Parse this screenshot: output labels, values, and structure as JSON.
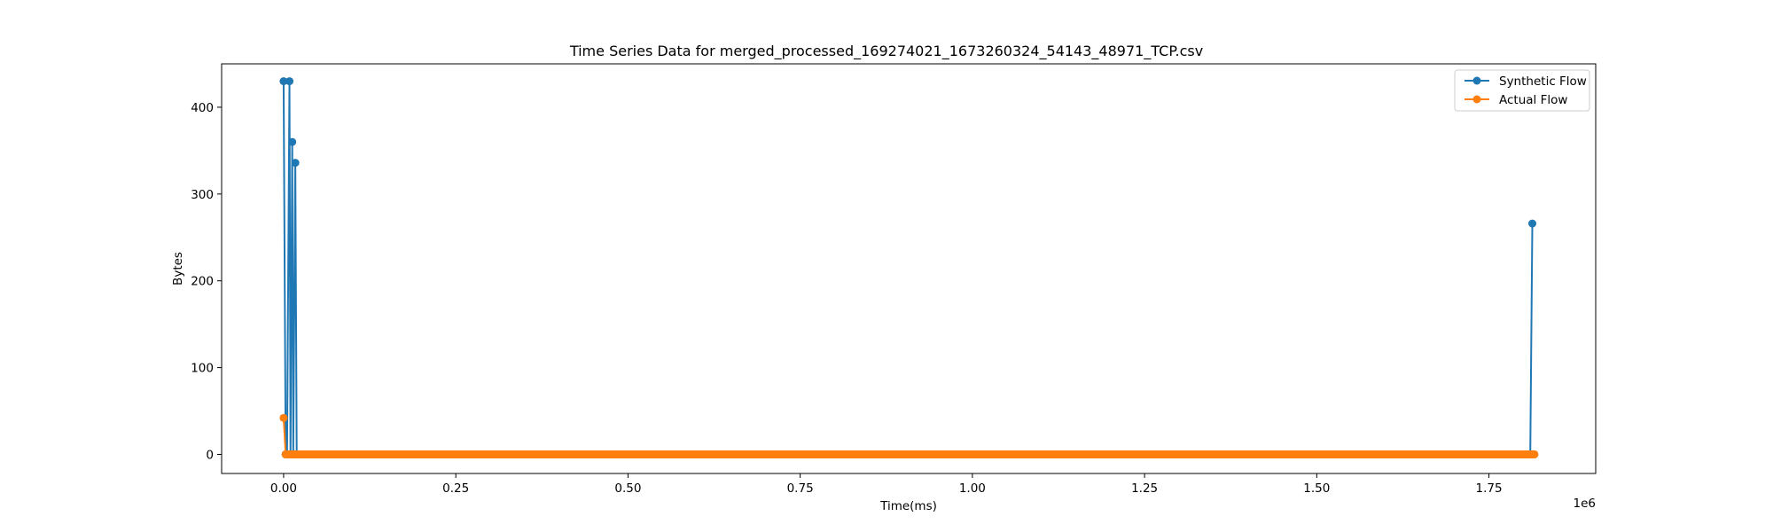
{
  "chart_data": {
    "type": "line",
    "title": "Time Series Data for merged_processed_169274021_1673260324_54143_48971_TCP.csv",
    "xlabel": "Time(ms)",
    "ylabel": "Bytes",
    "x_offset_label": "1e6",
    "x_scale": 1000000,
    "xlim": [
      -90000,
      1905000
    ],
    "ylim": [
      -22,
      450
    ],
    "xticks": [
      0,
      0.25,
      0.5,
      0.75,
      1.0,
      1.25,
      1.5,
      1.75
    ],
    "xtick_labels": [
      "0.00",
      "0.25",
      "0.50",
      "0.75",
      "1.00",
      "1.25",
      "1.50",
      "1.75"
    ],
    "yticks": [
      0,
      100,
      200,
      300,
      400
    ],
    "ytick_labels": [
      "0",
      "100",
      "200",
      "300",
      "400"
    ],
    "grid": false,
    "legend_position": "top-right",
    "series": [
      {
        "name": "Synthetic Flow",
        "color": "#1f77b4",
        "points": [
          [
            0,
            430
          ],
          [
            3000,
            0
          ],
          [
            5000,
            0
          ],
          [
            8500,
            430
          ],
          [
            10000,
            0
          ],
          [
            12500,
            360
          ],
          [
            14000,
            0
          ],
          [
            17000,
            336
          ],
          [
            19000,
            0
          ],
          [
            40000,
            0
          ],
          [
            100000,
            0
          ],
          [
            300000,
            0
          ],
          [
            600000,
            0
          ],
          [
            900000,
            0
          ],
          [
            1200000,
            0
          ],
          [
            1500000,
            0
          ],
          [
            1810000,
            0
          ],
          [
            1813000,
            266
          ]
        ]
      },
      {
        "name": "Actual Flow",
        "color": "#ff7f0e",
        "points": [
          [
            0,
            42
          ],
          [
            3000,
            0
          ],
          [
            20000,
            0
          ],
          [
            100000,
            0
          ],
          [
            300000,
            0
          ],
          [
            600000,
            0
          ],
          [
            900000,
            0
          ],
          [
            1200000,
            0
          ],
          [
            1500000,
            0
          ],
          [
            1816000,
            0
          ]
        ]
      }
    ]
  }
}
